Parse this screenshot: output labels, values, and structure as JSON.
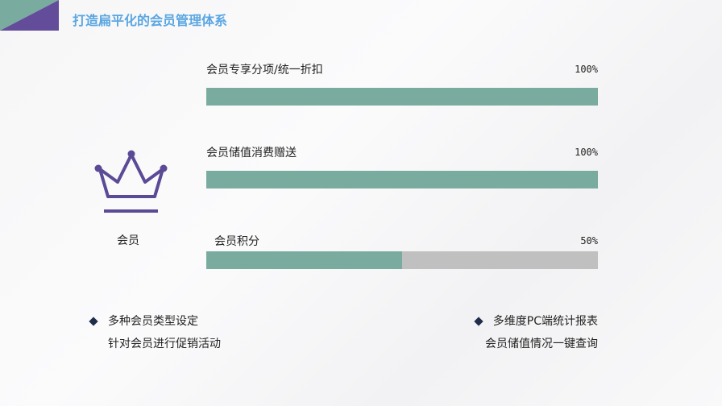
{
  "header": {
    "title": "打造扁平化的会员管理体系",
    "colors": {
      "teal": "#79ab9f",
      "purple": "#634d9a",
      "title": "#5aa6e2"
    }
  },
  "crown": {
    "icon": "crown-icon",
    "label": "会员",
    "color": "#5b4a96"
  },
  "bars": [
    {
      "label": "会员专享分项/统一折扣",
      "percent_text": "100%",
      "value": 100
    },
    {
      "label": "会员储值消费赠送",
      "percent_text": "100%",
      "value": 100
    },
    {
      "label": "会员积分",
      "percent_text": "50%",
      "value": 50
    }
  ],
  "bar_colors": {
    "fill": "#7aab9f",
    "track": "#c0c0c0"
  },
  "features": {
    "left": {
      "title": "多种会员类型设定",
      "desc": "针对会员进行促销活动"
    },
    "right": {
      "title": "多维度PC端统计报表",
      "desc": "会员储值情况一键查询"
    }
  }
}
